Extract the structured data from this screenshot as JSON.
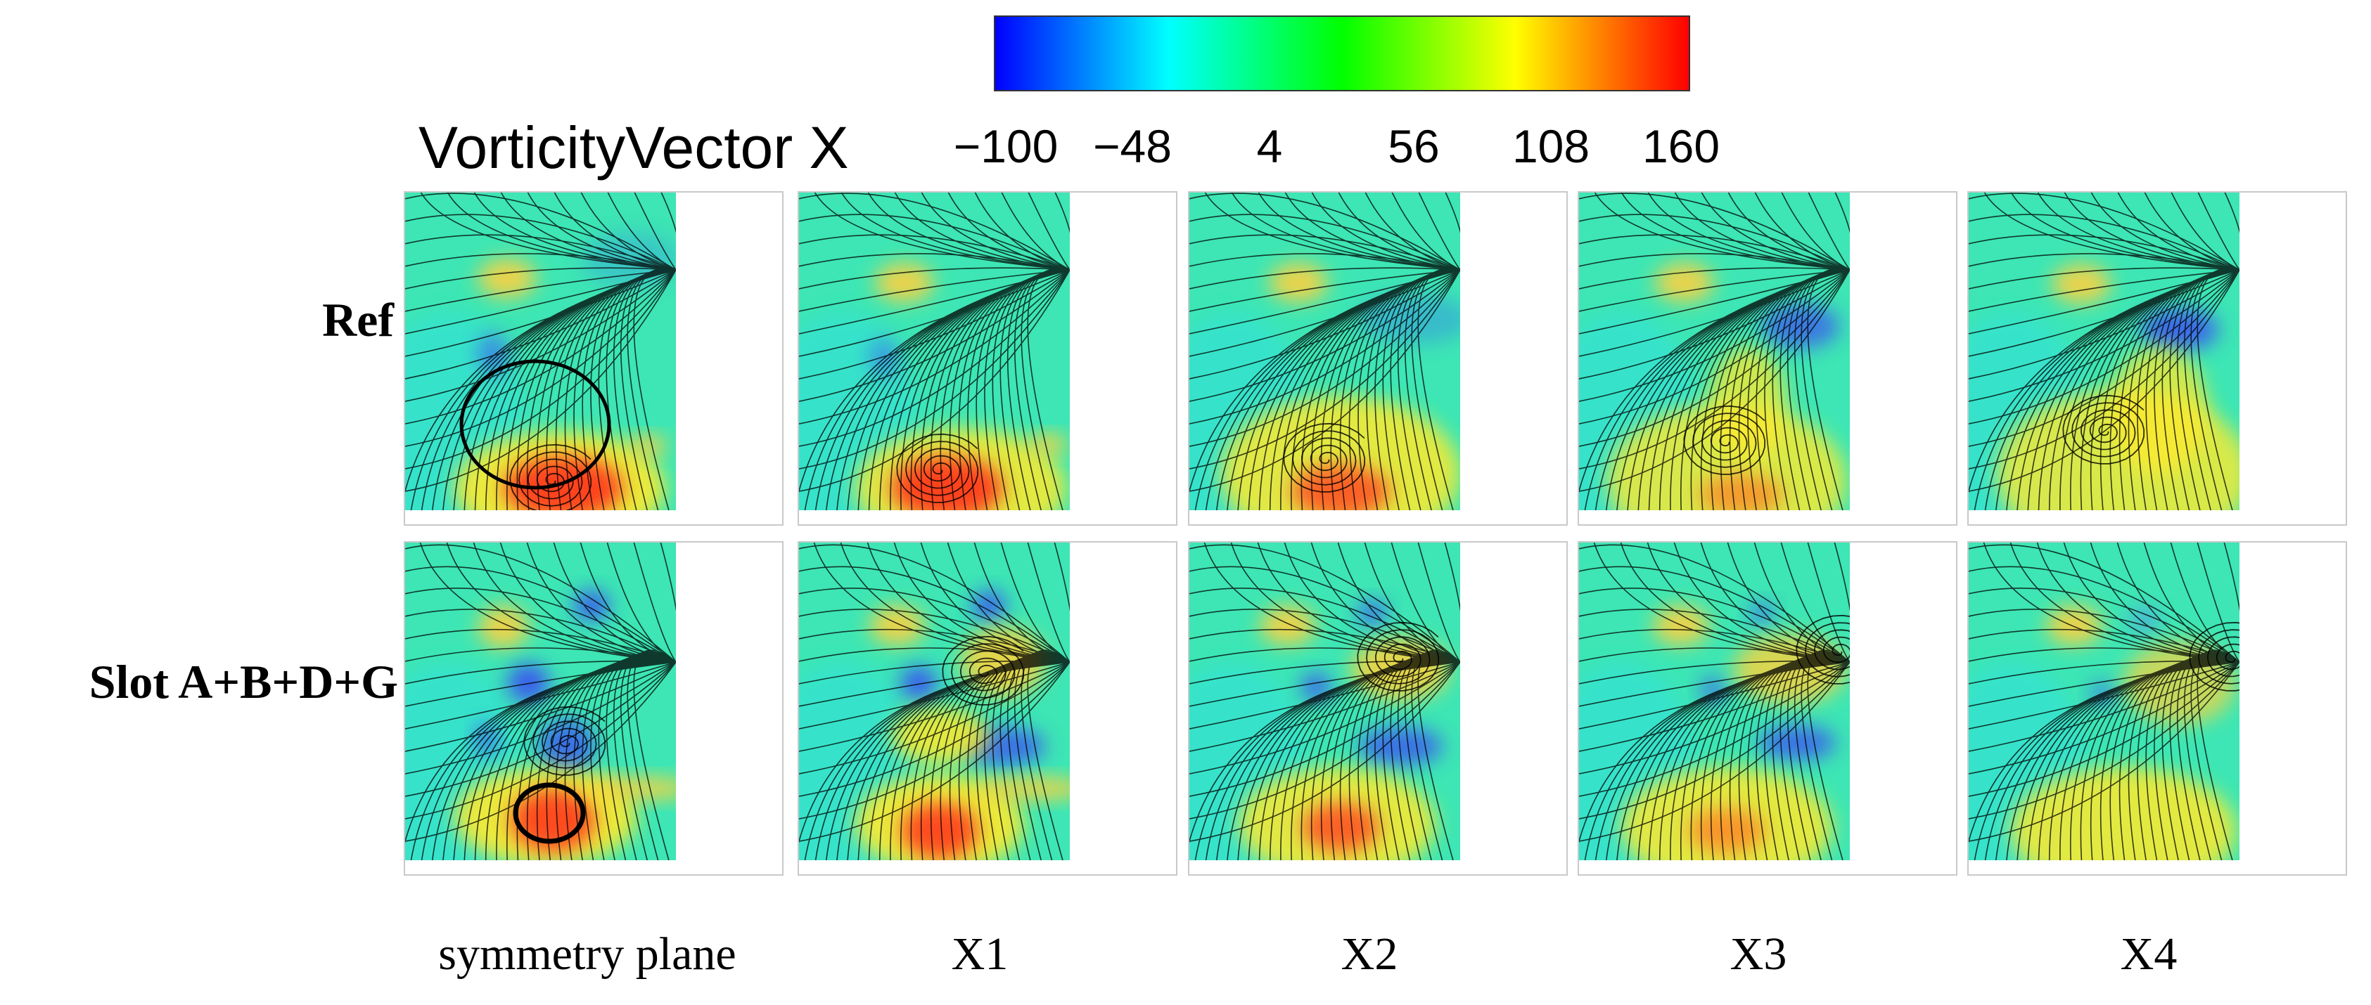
{
  "colorbar": {
    "title": "VorticityVector X",
    "ticks": [
      "−100",
      "−48",
      "4",
      "56",
      "108",
      "160"
    ],
    "stops": [
      "#0000ff",
      "#00ffff",
      "#00ff00",
      "#ffff00",
      "#ff0000"
    ]
  },
  "rows": [
    {
      "label": "Ref"
    },
    {
      "label": "Slot A+B+D+G"
    }
  ],
  "columns": [
    {
      "label": "symmetry plane"
    },
    {
      "label": "X1"
    },
    {
      "label": "X2"
    },
    {
      "label": "X3"
    },
    {
      "label": "X4"
    }
  ]
}
